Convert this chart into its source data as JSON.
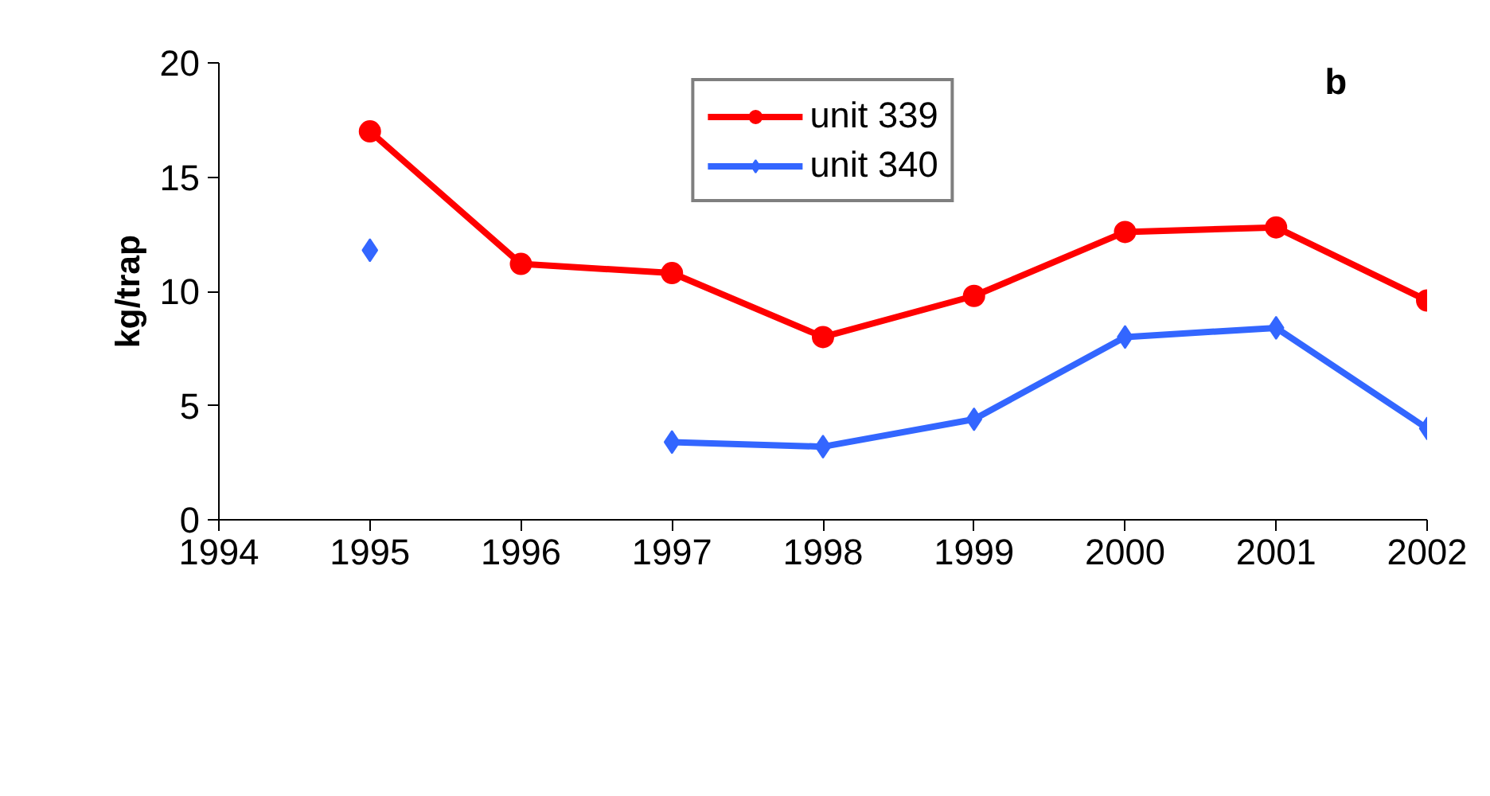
{
  "chart_data": {
    "type": "line",
    "ylabel": "kg/trap",
    "annotations": [
      "b"
    ],
    "x": [
      1995,
      1996,
      1997,
      1998,
      1999,
      2000,
      2001,
      2002
    ],
    "series": [
      {
        "name": "unit 339",
        "color": "#ff0000",
        "marker": "circle",
        "values": [
          17.0,
          11.2,
          10.8,
          8.0,
          9.8,
          12.6,
          12.8,
          9.6
        ]
      },
      {
        "name": "unit 340",
        "color": "#3366ff",
        "marker": "diamond",
        "values": [
          11.8,
          null,
          3.4,
          3.2,
          4.4,
          8.0,
          8.4,
          4.0
        ]
      }
    ],
    "xlim": [
      1994,
      2002
    ],
    "xticks": [
      1994,
      1995,
      1996,
      1997,
      1998,
      1999,
      2000,
      2001,
      2002
    ],
    "ylim": [
      0,
      20
    ],
    "yticks": [
      0,
      5,
      10,
      15,
      20
    ],
    "grid": false,
    "legend": "top"
  }
}
